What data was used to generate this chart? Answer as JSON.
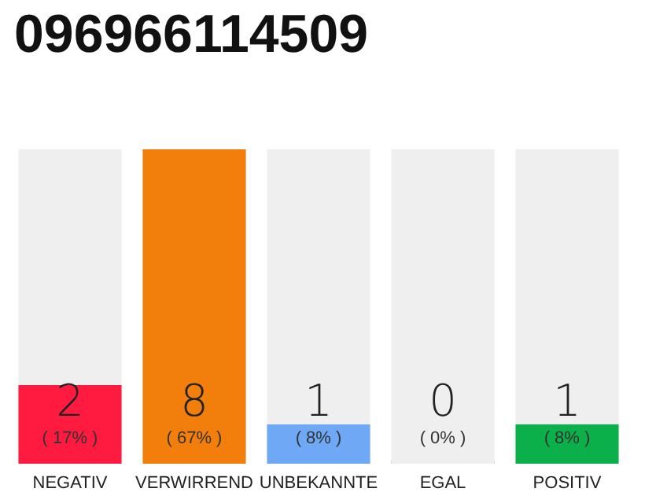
{
  "chart_data": {
    "type": "bar",
    "title": "096966114509",
    "stacked": true,
    "categories": [
      "NEGATIV",
      "VERWIRREND",
      "UNBEKANNTE",
      "EGAL",
      "POSITIV"
    ],
    "series": [
      {
        "colors": [
          "#ff1a40",
          "#f27f0c",
          "#6fa8f5",
          "#9e9e9e",
          "#0cb04a"
        ],
        "values": [
          2,
          8,
          1,
          0,
          1
        ],
        "value_labels": [
          "2\n( 17% )",
          "8\n( 67% )",
          "1\n( 8% )",
          "0\n( 0% )",
          "1\n( 8% )"
        ]
      },
      {
        "color": "#efefef",
        "values": [
          6,
          0,
          7,
          8,
          7
        ]
      }
    ]
  }
}
